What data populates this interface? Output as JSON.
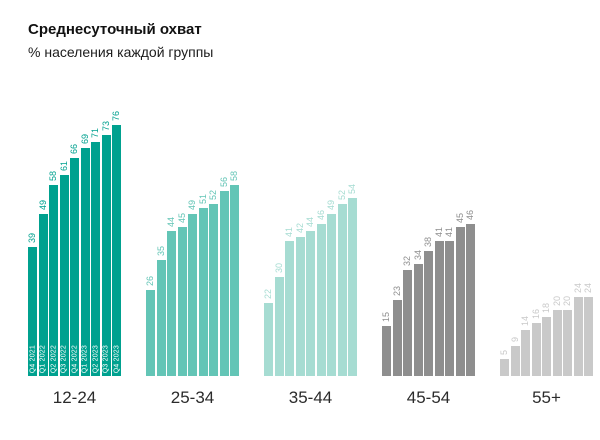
{
  "title": "Среднесуточный охват",
  "subtitle": "% населения каждой группы",
  "chart_data": {
    "type": "bar",
    "title": "Среднесуточный охват",
    "subtitle": "% населения каждой группы",
    "ylabel": "% населения",
    "ylim": [
      0,
      80
    ],
    "grid": false,
    "legend_position": "none",
    "value_labels_rotated": true,
    "quarters": [
      "Q4 2021",
      "Q1 2022",
      "Q2 2022",
      "Q3 2022",
      "Q4 2022",
      "Q1 2023",
      "Q2 2023",
      "Q3 2023",
      "Q4 2023"
    ],
    "groups": [
      {
        "label": "12-24",
        "color": "#00A18F",
        "values": [
          39,
          49,
          58,
          61,
          66,
          69,
          71,
          73,
          76
        ]
      },
      {
        "label": "25-34",
        "color": "#63C5B6",
        "values": [
          26,
          35,
          44,
          45,
          49,
          51,
          52,
          56,
          58
        ]
      },
      {
        "label": "35-44",
        "color": "#A6DCD2",
        "values": [
          22,
          30,
          41,
          42,
          44,
          46,
          49,
          52,
          54
        ]
      },
      {
        "label": "45-54",
        "color": "#8E8E8E",
        "values": [
          15,
          23,
          32,
          34,
          38,
          41,
          41,
          45,
          46
        ]
      },
      {
        "label": "55+",
        "color": "#C9C9C9",
        "values": [
          5,
          9,
          14,
          16,
          18,
          20,
          20,
          24,
          24
        ]
      }
    ]
  }
}
